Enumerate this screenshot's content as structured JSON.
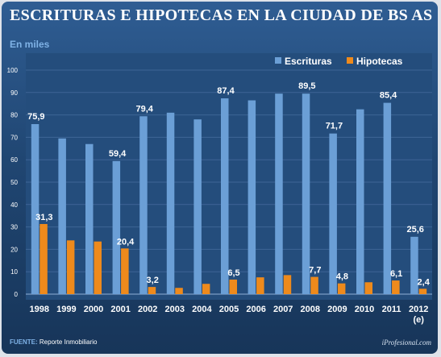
{
  "header": {
    "title": "ESCRITURAS E HIPOTECAS EN LA CIUDAD DE BS AS",
    "subtitle": "En miles"
  },
  "footer": {
    "source_label": "FUENTE:",
    "source_value": "Reporte Inmobiliario",
    "watermark": "iProfesional.com"
  },
  "colors": {
    "escrituras": "#6b9fd6",
    "hipotecas": "#ee8a1c",
    "plot_bg": "#244d7c",
    "grid": "#3e6596"
  },
  "chart_data": {
    "type": "bar",
    "title": "ESCRITURAS E HIPOTECAS EN LA CIUDAD DE BS AS",
    "ylabel": "En miles",
    "xlabel": "",
    "ylim": [
      0,
      100
    ],
    "yticks": [
      0,
      10,
      20,
      30,
      40,
      50,
      60,
      70,
      80,
      90,
      100
    ],
    "grid": true,
    "legend_position": "top-right",
    "categories": [
      "1998",
      "1999",
      "2000",
      "2001",
      "2002",
      "2003",
      "2004",
      "2005",
      "2006",
      "2007",
      "2008",
      "2009",
      "2010",
      "2011",
      "2012"
    ],
    "category_notes": {
      "2012": "(e)"
    },
    "series": [
      {
        "name": "Escrituras",
        "values": [
          75.9,
          69.5,
          67.0,
          59.4,
          79.4,
          81.0,
          78.0,
          87.4,
          86.5,
          89.5,
          89.5,
          71.7,
          82.5,
          85.4,
          25.6
        ],
        "labels": [
          "75,9",
          "",
          "",
          "59,4",
          "79,4",
          "",
          "",
          "87,4",
          "",
          "",
          "89,5",
          "71,7",
          "",
          "85,4",
          "25,6"
        ]
      },
      {
        "name": "Hipotecas",
        "values": [
          31.3,
          24.0,
          23.5,
          20.4,
          3.2,
          2.8,
          4.6,
          6.5,
          7.5,
          8.5,
          7.7,
          4.8,
          5.3,
          6.1,
          2.4
        ],
        "labels": [
          "31,3",
          "",
          "",
          "20,4",
          "3,2",
          "",
          "",
          "6,5",
          "",
          "",
          "7,7",
          "4,8",
          "",
          "6,1",
          "2,4"
        ]
      }
    ]
  }
}
